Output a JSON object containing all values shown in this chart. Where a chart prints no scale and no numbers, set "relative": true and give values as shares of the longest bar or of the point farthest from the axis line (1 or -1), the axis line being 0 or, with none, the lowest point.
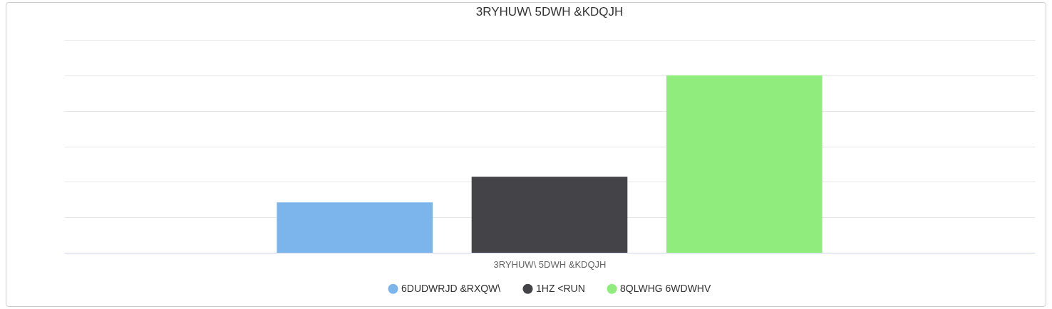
{
  "chart_data": {
    "type": "bar",
    "title": "3RYHUW\\ 5DWH &KDQJH",
    "xlabel": "3RYHUW\\ 5DWH &KDQJH",
    "categories": [
      null
    ],
    "relative": true,
    "grid": "y",
    "legend": "bottom",
    "series": [
      {
        "name": "6DUDWRJD &RXQW\\",
        "color": "#7cb5ec",
        "values": [
          0.284
        ]
      },
      {
        "name": "1HZ <RUN",
        "color": "#434348",
        "values": [
          0.428
        ]
      },
      {
        "name": "8QLWHG 6WDWHV",
        "color": "#90ed7d",
        "values": [
          1
        ]
      }
    ]
  }
}
